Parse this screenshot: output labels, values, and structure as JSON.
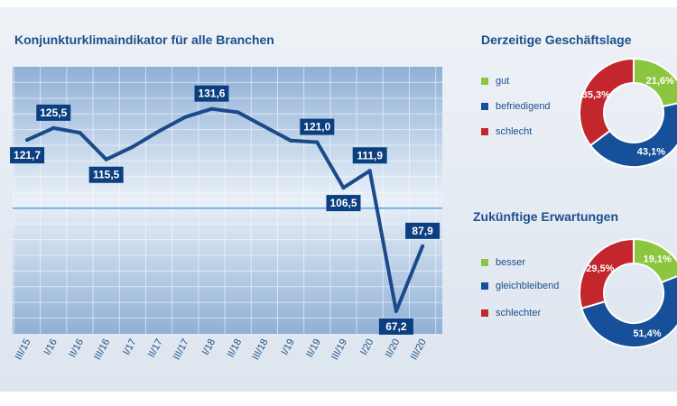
{
  "colors": {
    "line": "#1b4a8a",
    "label_bg": "#0c3f7f",
    "plot_top": "#8fb0d6",
    "plot_mid": "#e8eff8",
    "grid": "#ffffff",
    "midline": "#59a3dd",
    "green": "#8cc63f",
    "blue": "#17509a",
    "red": "#c4262e",
    "title": "#1b4f8c"
  },
  "line_title": "Konjunkturklimaindikator für alle Branchen",
  "chart_data": [
    {
      "type": "line",
      "title": "Konjunkturklimaindikator für alle Branchen",
      "categories": [
        "III/15",
        "I/16",
        "II/16",
        "III/16",
        "I/17",
        "II/17",
        "III/17",
        "I/18",
        "II/18",
        "III/18",
        "I/19",
        "II/19",
        "III/19",
        "I/20",
        "II/20",
        "III/20"
      ],
      "values": [
        121.7,
        125.5,
        124.0,
        115.5,
        119.5,
        124.5,
        129.0,
        131.6,
        130.5,
        126.0,
        121.5,
        121.0,
        106.5,
        111.9,
        67.2,
        87.9
      ],
      "data_labels": [
        {
          "index": 0,
          "text": "121,7",
          "pos": "below"
        },
        {
          "index": 1,
          "text": "125,5",
          "pos": "above"
        },
        {
          "index": 3,
          "text": "115,5",
          "pos": "below"
        },
        {
          "index": 7,
          "text": "131,6",
          "pos": "above"
        },
        {
          "index": 11,
          "text": "121,0",
          "pos": "above"
        },
        {
          "index": 12,
          "text": "106,5",
          "pos": "below"
        },
        {
          "index": 13,
          "text": "111,9",
          "pos": "above"
        },
        {
          "index": 14,
          "text": "67,2",
          "pos": "below"
        },
        {
          "index": 15,
          "text": "87,9",
          "pos": "above"
        }
      ],
      "ylim": [
        60,
        145
      ],
      "midline_value": 100,
      "grid": true
    },
    {
      "type": "pie",
      "title": "Derzeitige Geschäftslage",
      "labels": [
        "gut",
        "befriedigend",
        "schlecht"
      ],
      "values": [
        21.6,
        43.1,
        35.3
      ],
      "value_labels": [
        "21,6%",
        "43,1%",
        "35,3%"
      ],
      "colors": [
        "#8cc63f",
        "#17509a",
        "#c4262e"
      ]
    },
    {
      "type": "pie",
      "title": "Zukünftige Erwartungen",
      "labels": [
        "besser",
        "gleichbleibend",
        "schlechter"
      ],
      "values": [
        19.1,
        51.4,
        29.5
      ],
      "value_labels": [
        "19,1%",
        "51,4%",
        "29,5%"
      ],
      "colors": [
        "#8cc63f",
        "#17509a",
        "#c4262e"
      ]
    }
  ]
}
